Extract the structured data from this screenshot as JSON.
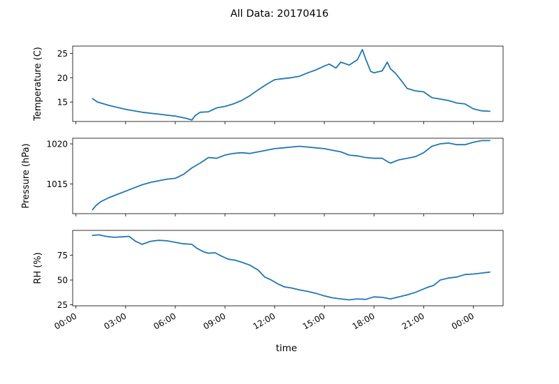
{
  "chart_data": {
    "type": "line",
    "title": "All Data: 20170416",
    "xlabel": "time",
    "x_tick_labels": [
      "00:00",
      "03:00",
      "06:00",
      "09:00",
      "12:00",
      "15:00",
      "18:00",
      "21:00",
      "00:00"
    ],
    "x_tick_hours": [
      0,
      3,
      6,
      9,
      12,
      15,
      18,
      21,
      24
    ],
    "xlim_hours": [
      -0.2,
      25.8
    ],
    "line_color": "#1f77b4",
    "panels": [
      {
        "ylabel": "Temperature (C)",
        "ylim": [
          11.0,
          26.5
        ],
        "yticks": [
          15,
          20,
          25
        ],
        "ytick_labels": [
          "15",
          "20",
          "25"
        ],
        "series": {
          "x_hours": [
            1.0,
            1.3,
            2.0,
            3.0,
            4.0,
            5.0,
            6.0,
            6.6,
            7.0,
            7.2,
            7.5,
            8.0,
            8.5,
            9.0,
            9.5,
            10.0,
            10.5,
            11.0,
            11.5,
            12.0,
            12.5,
            13.0,
            13.5,
            14.0,
            14.5,
            15.0,
            15.3,
            15.7,
            16.0,
            16.5,
            17.0,
            17.3,
            17.5,
            17.8,
            18.0,
            18.5,
            18.8,
            19.0,
            19.3,
            19.7,
            20.0,
            20.5,
            21.0,
            21.5,
            22.0,
            22.5,
            23.0,
            23.5,
            24.0,
            24.5,
            25.0
          ],
          "values": [
            15.7,
            15.0,
            14.3,
            13.5,
            12.9,
            12.5,
            12.1,
            11.7,
            11.3,
            12.2,
            12.9,
            13.0,
            13.8,
            14.1,
            14.6,
            15.3,
            16.3,
            17.5,
            18.6,
            19.6,
            19.8,
            20.0,
            20.3,
            21.0,
            21.6,
            22.4,
            22.8,
            22.0,
            23.2,
            22.6,
            23.7,
            25.8,
            23.8,
            21.3,
            21.0,
            21.4,
            23.2,
            21.8,
            20.9,
            19.2,
            17.8,
            17.3,
            17.1,
            15.9,
            15.6,
            15.3,
            14.8,
            14.6,
            13.6,
            13.2,
            13.1
          ]
        }
      },
      {
        "ylabel": "Pressure (hPa)",
        "ylim": [
          1011.3,
          1020.7
        ],
        "yticks": [
          1015,
          1020
        ],
        "ytick_labels": [
          "1015",
          "1020"
        ],
        "series": {
          "x_hours": [
            1.0,
            1.2,
            1.5,
            2.0,
            2.5,
            3.0,
            3.5,
            4.0,
            4.5,
            5.0,
            5.5,
            6.0,
            6.5,
            7.0,
            7.5,
            8.0,
            8.5,
            9.0,
            9.5,
            10.0,
            10.5,
            11.0,
            11.5,
            12.0,
            12.5,
            13.0,
            13.5,
            14.0,
            14.5,
            15.0,
            15.5,
            16.0,
            16.5,
            17.0,
            17.5,
            18.0,
            18.5,
            18.8,
            19.0,
            19.5,
            20.0,
            20.5,
            21.0,
            21.5,
            22.0,
            22.5,
            23.0,
            23.5,
            24.0,
            24.5,
            25.0
          ],
          "values": [
            1011.8,
            1012.3,
            1012.8,
            1013.3,
            1013.7,
            1014.1,
            1014.5,
            1014.9,
            1015.2,
            1015.4,
            1015.6,
            1015.7,
            1016.2,
            1017.0,
            1017.6,
            1018.3,
            1018.2,
            1018.6,
            1018.8,
            1018.9,
            1018.8,
            1019.0,
            1019.2,
            1019.4,
            1019.5,
            1019.6,
            1019.7,
            1019.6,
            1019.5,
            1019.4,
            1019.2,
            1019.0,
            1018.6,
            1018.5,
            1018.3,
            1018.2,
            1018.2,
            1017.8,
            1017.6,
            1018.0,
            1018.2,
            1018.4,
            1018.9,
            1019.7,
            1020.0,
            1020.1,
            1019.9,
            1019.9,
            1020.2,
            1020.4,
            1020.4
          ]
        }
      },
      {
        "ylabel": "RH (%)",
        "ylim": [
          24.0,
          100.0
        ],
        "yticks": [
          25,
          50,
          75
        ],
        "ytick_labels": [
          "25",
          "50",
          "75"
        ],
        "series": {
          "x_hours": [
            1.0,
            1.4,
            1.8,
            2.3,
            2.8,
            3.2,
            3.6,
            4.0,
            4.5,
            5.0,
            5.5,
            6.0,
            6.5,
            7.0,
            7.3,
            7.7,
            8.0,
            8.4,
            8.8,
            9.2,
            9.6,
            10.0,
            10.5,
            11.0,
            11.4,
            11.8,
            12.2,
            12.6,
            13.0,
            13.5,
            14.0,
            14.5,
            15.0,
            15.5,
            16.0,
            16.5,
            17.0,
            17.5,
            18.0,
            18.5,
            19.0,
            19.5,
            20.0,
            20.5,
            21.0,
            21.3,
            21.6,
            22.0,
            22.5,
            23.0,
            23.5,
            24.0,
            24.5,
            25.0
          ],
          "values": [
            95.0,
            95.5,
            94.0,
            93.0,
            93.5,
            94.0,
            89.0,
            86.0,
            89.0,
            90.0,
            89.5,
            88.0,
            86.5,
            86.0,
            82.0,
            78.5,
            77.0,
            77.5,
            74.0,
            71.0,
            70.0,
            68.0,
            65.0,
            60.0,
            53.0,
            50.0,
            46.0,
            43.0,
            42.0,
            40.0,
            38.5,
            36.5,
            34.0,
            32.0,
            31.0,
            30.0,
            31.0,
            30.5,
            33.0,
            32.5,
            31.0,
            33.0,
            35.0,
            37.5,
            41.0,
            43.0,
            44.5,
            50.0,
            52.0,
            53.0,
            55.5,
            56.0,
            57.0,
            58.0
          ]
        }
      }
    ]
  }
}
